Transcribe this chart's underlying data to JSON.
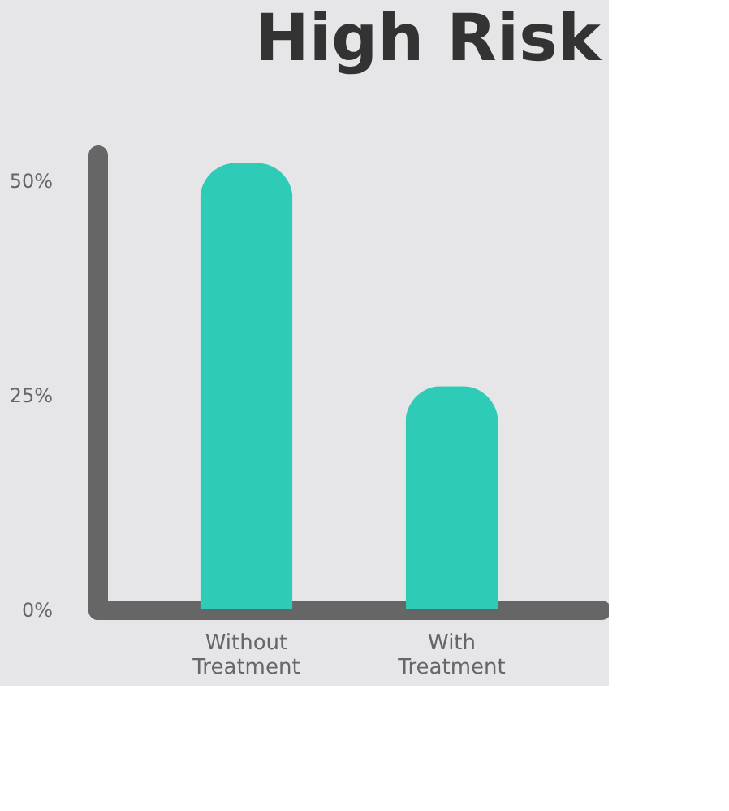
{
  "chart_data": {
    "type": "bar",
    "title": "High Risk",
    "categories": [
      "Without Treatment",
      "With Treatment"
    ],
    "values": [
      52,
      26
    ],
    "color": "#2ecbb7",
    "ylim": [
      0,
      53
    ],
    "yticks": [
      {
        "value": 0,
        "label": "0%"
      },
      {
        "value": 25,
        "label": "25%"
      },
      {
        "value": 50,
        "label": "50%"
      }
    ],
    "grid": false
  }
}
